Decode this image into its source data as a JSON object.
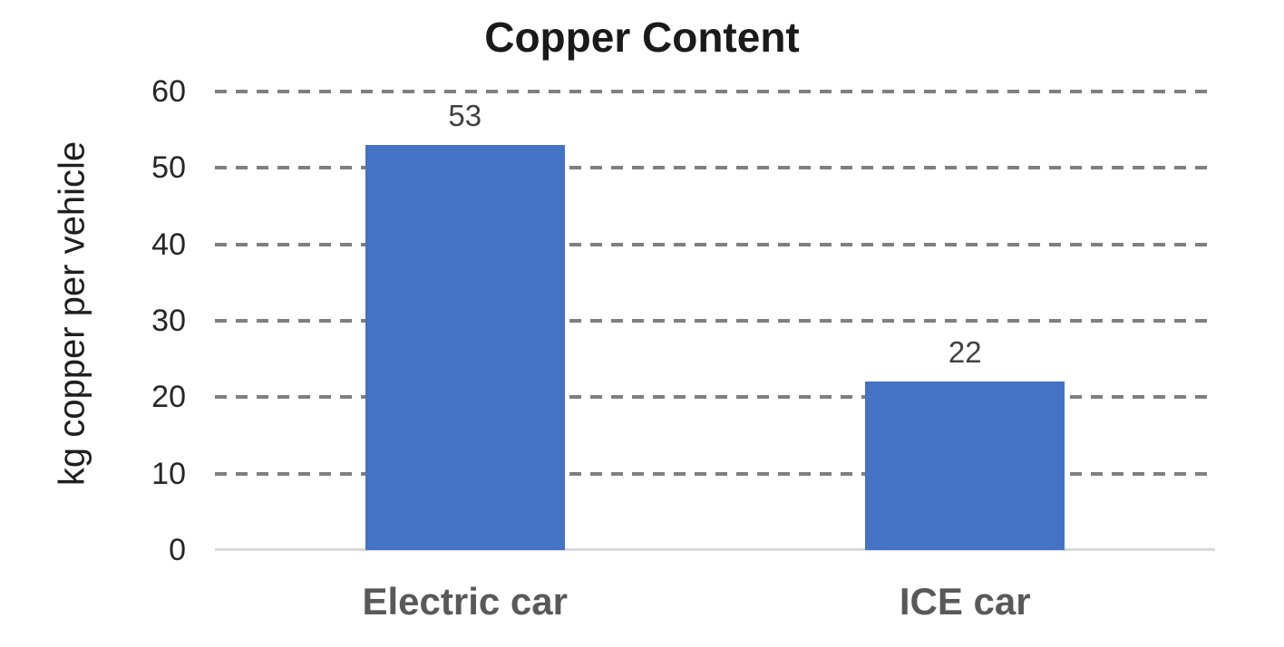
{
  "chart_data": {
    "type": "bar",
    "title": "Copper Content",
    "ylabel": "kg copper per vehicle",
    "xlabel": "",
    "categories": [
      "Electric car",
      "ICE car"
    ],
    "values": [
      53,
      22
    ],
    "data_labels": [
      "53",
      "22"
    ],
    "ylim": [
      0,
      60
    ],
    "yticks": [
      0,
      10,
      20,
      30,
      40,
      50,
      60
    ],
    "grid": "horizontal-dashed",
    "legend": "none",
    "colors": {
      "bar": "#4472C4",
      "gridline": "#7F7F7F",
      "axis_line": "#D9D9D9",
      "title_text": "#1A1A1A",
      "tick_text": "#262626",
      "category_text": "#595959",
      "value_text": "#404040"
    }
  }
}
